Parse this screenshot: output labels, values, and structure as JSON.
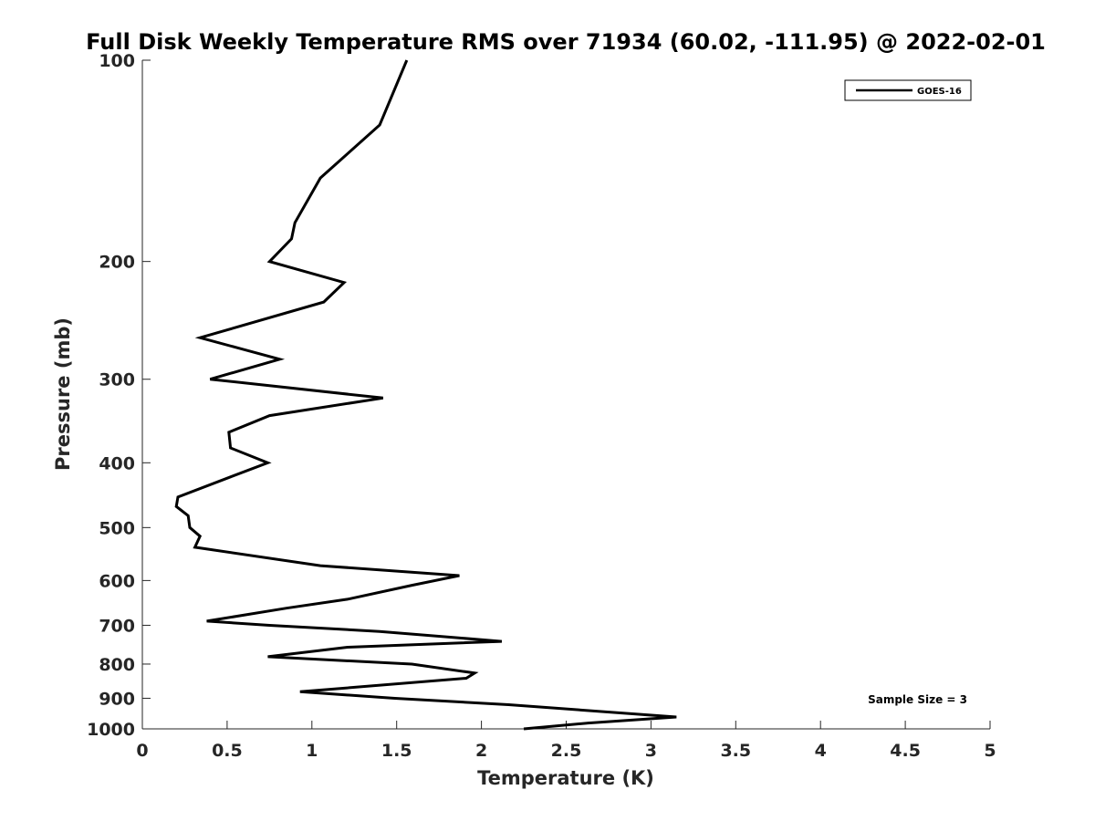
{
  "chart_data": {
    "type": "line",
    "title": "Full Disk Weekly Temperature RMS over 71934 (60.02, -111.95) @ 2022-02-01",
    "xlabel": "Temperature (K)",
    "ylabel": "Pressure (mb)",
    "xlim": [
      0,
      5
    ],
    "ylim": [
      100,
      1000
    ],
    "y_scale": "log",
    "y_reversed": true,
    "x_ticks": [
      "0",
      "0.5",
      "1",
      "1.5",
      "2",
      "2.5",
      "3",
      "3.5",
      "4",
      "4.5",
      "5"
    ],
    "y_ticks": [
      "100",
      "200",
      "300",
      "400",
      "500",
      "600",
      "700",
      "800",
      "900",
      "1000"
    ],
    "grid": false,
    "legend_position": "top-right",
    "series": [
      {
        "name": "GOES-16",
        "color": "#000000",
        "points": [
          [
            1.56,
            100
          ],
          [
            1.4,
            125
          ],
          [
            1.05,
            150
          ],
          [
            0.9,
            175
          ],
          [
            0.88,
            185
          ],
          [
            0.75,
            200
          ],
          [
            1.19,
            215
          ],
          [
            1.07,
            230
          ],
          [
            0.34,
            260
          ],
          [
            0.81,
            280
          ],
          [
            0.4,
            300
          ],
          [
            1.42,
            320
          ],
          [
            0.75,
            340
          ],
          [
            0.51,
            360
          ],
          [
            0.52,
            380
          ],
          [
            0.74,
            400
          ],
          [
            0.52,
            420
          ],
          [
            0.21,
            450
          ],
          [
            0.2,
            465
          ],
          [
            0.27,
            480
          ],
          [
            0.28,
            500
          ],
          [
            0.34,
            515
          ],
          [
            0.31,
            535
          ],
          [
            1.05,
            570
          ],
          [
            1.87,
            590
          ],
          [
            1.59,
            610
          ],
          [
            1.21,
            640
          ],
          [
            0.85,
            660
          ],
          [
            0.38,
            690
          ],
          [
            0.75,
            700
          ],
          [
            1.4,
            715
          ],
          [
            2.12,
            740
          ],
          [
            1.21,
            755
          ],
          [
            0.74,
            780
          ],
          [
            1.59,
            800
          ],
          [
            1.96,
            825
          ],
          [
            1.91,
            840
          ],
          [
            0.93,
            880
          ],
          [
            1.49,
            900
          ],
          [
            2.16,
            920
          ],
          [
            3.15,
            960
          ],
          [
            2.63,
            980
          ],
          [
            2.25,
            1000
          ]
        ]
      }
    ],
    "annotation": "Sample Size = 3"
  }
}
